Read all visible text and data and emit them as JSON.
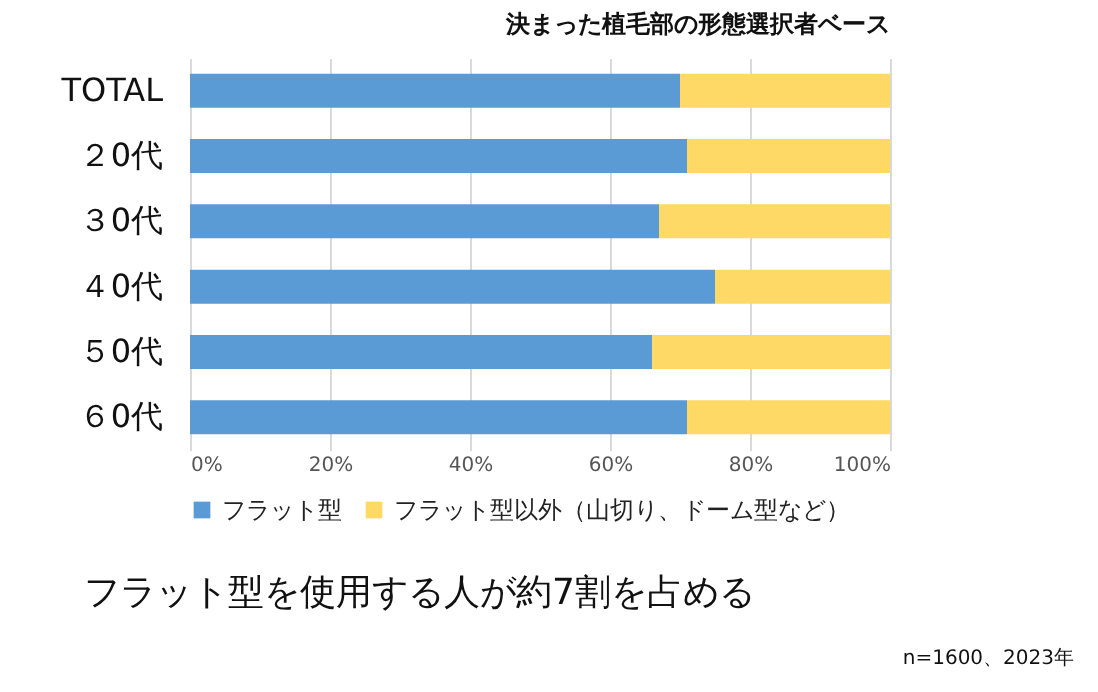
{
  "chart_data": {
    "type": "bar",
    "orientation": "horizontal",
    "stacked": true,
    "subtitle": "決まった植毛部の形態選択者ベース",
    "categories": [
      "TOTAL",
      "２0代",
      "３0代",
      "４0代",
      "５0代",
      "６0代"
    ],
    "series": [
      {
        "name": "フラット型",
        "color": "#5b9bd5",
        "values": [
          70,
          71,
          67,
          75,
          66,
          71
        ]
      },
      {
        "name": "フラット型以外（山切り、ドーム型など）",
        "color": "#ffd966",
        "values": [
          30,
          29,
          33,
          25,
          34,
          29
        ]
      }
    ],
    "xlim": [
      0,
      100
    ],
    "xticks": [
      {
        "value": 0,
        "label": "0%"
      },
      {
        "value": 20,
        "label": "20%"
      },
      {
        "value": 40,
        "label": "40%"
      },
      {
        "value": 60,
        "label": "60%"
      },
      {
        "value": 80,
        "label": "80%"
      },
      {
        "value": 100,
        "label": "100%"
      }
    ],
    "grid": "x",
    "legend": "bottom",
    "annotations": [
      "フラット型を使用する人が約7割を占める",
      "n=1600、2023年"
    ]
  }
}
